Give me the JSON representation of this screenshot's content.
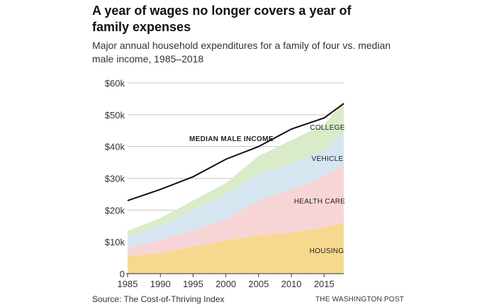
{
  "header": {
    "title": "A year of wages no longer covers a year of family expenses",
    "subtitle": "Major annual household expenditures for a family of four vs. median male income, 1985–2018"
  },
  "footer": {
    "source": "Source: The Cost-of-Thriving Index",
    "credit": "THE WASHINGTON POST"
  },
  "chart_data": {
    "type": "area",
    "stacked": true,
    "x": [
      1985,
      1990,
      1995,
      2000,
      2005,
      2010,
      2015,
      2018
    ],
    "xlim": [
      1985,
      2018
    ],
    "ylim": [
      0,
      60000
    ],
    "xticks": [
      1985,
      1990,
      1995,
      2000,
      2005,
      2010,
      2015
    ],
    "yticks": [
      0,
      10000,
      20000,
      30000,
      40000,
      50000,
      60000
    ],
    "ytick_labels": [
      "0",
      "$10k",
      "$20k",
      "$30k",
      "$40k",
      "$50k",
      "$60k"
    ],
    "grid": "horizontal",
    "series": [
      {
        "name": "HOUSING",
        "color": "#f6d98f",
        "values": [
          5500,
          6500,
          8500,
          10500,
          12000,
          13000,
          14500,
          16000
        ]
      },
      {
        "name": "HEALTH CARE",
        "color": "#f7d4d6",
        "values": [
          2500,
          4000,
          5000,
          6500,
          11000,
          13500,
          16000,
          18500
        ]
      },
      {
        "name": "VEHICLE",
        "color": "#d5e6f1",
        "values": [
          3500,
          4500,
          6500,
          8000,
          8500,
          8000,
          8500,
          10000
        ]
      },
      {
        "name": "COLLEGE",
        "color": "#d9ebc8",
        "values": [
          2000,
          2500,
          3000,
          3500,
          5500,
          7500,
          8000,
          9500
        ]
      }
    ],
    "line": {
      "name": "MEDIAN MALE INCOME",
      "color": "#111111",
      "values": [
        23000,
        26500,
        30500,
        36000,
        40000,
        45500,
        49000,
        53500
      ]
    },
    "labels": {
      "housing": "HOUSING",
      "health_care": "HEALTH CARE",
      "vehicle": "VEHICLE",
      "college": "COLLEGE",
      "income": "MEDIAN MALE INCOME"
    }
  }
}
